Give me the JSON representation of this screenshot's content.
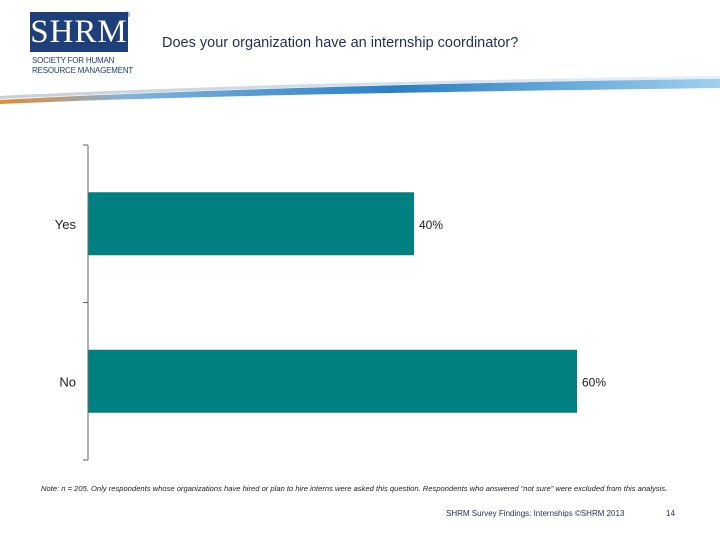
{
  "logo": {
    "text": "SHRM",
    "registered": "®",
    "line1": "SOCIETY FOR HUMAN",
    "line2": "RESOURCE MANAGEMENT"
  },
  "title": "Does your organization have an internship coordinator?",
  "chart_data": {
    "type": "bar",
    "orientation": "horizontal",
    "categories": [
      "Yes",
      "No"
    ],
    "values": [
      40,
      60
    ],
    "value_labels": [
      "40%",
      "60%"
    ],
    "title": "",
    "xlabel": "",
    "ylabel": "",
    "xlim": [
      0,
      100
    ],
    "grid": false,
    "legend": "none",
    "bar_color": "#008080"
  },
  "footnote": "Note: n = 205. Only respondents whose organizations have hired or plan to hire interns were asked this question. Respondents who answered “not sure” were excluded from this analysis.",
  "footer": {
    "source": "SHRM Survey Findings: Internships ©SHRM 2013",
    "page": "14"
  },
  "colors": {
    "brand_navy": "#1f3f7a",
    "swoosh_blue": "#2b7fc4",
    "swoosh_orange": "#e88a2e"
  }
}
